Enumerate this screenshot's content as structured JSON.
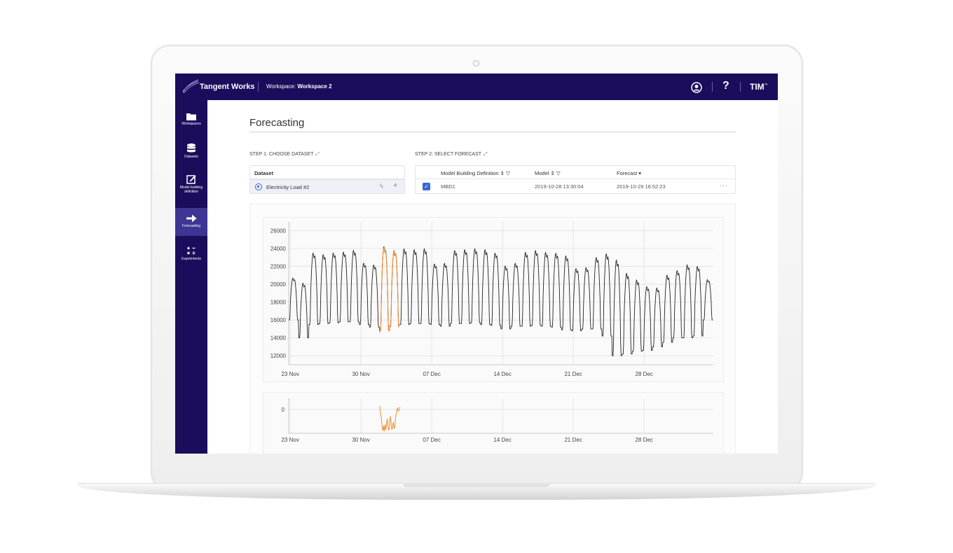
{
  "header": {
    "brand": "Tangent Works",
    "workspace_prefix": "Workspace:",
    "workspace_name": "Workspace 2",
    "help": "?",
    "product": "TIM",
    "product_mark": "™"
  },
  "sidebar": {
    "items": [
      {
        "label": "Workspaces",
        "icon": "folder-icon"
      },
      {
        "label": "Datasets",
        "icon": "database-icon"
      },
      {
        "label": "Model building definition",
        "icon": "edit-icon"
      },
      {
        "label": "Forecasting",
        "icon": "arrow-right-icon",
        "active": true
      },
      {
        "label": "Experiments",
        "icon": "calculator-icon"
      }
    ]
  },
  "page": {
    "title": "Forecasting"
  },
  "step1": {
    "label": "STEP 1: CHOOSE DATASET",
    "column": "Dataset",
    "dataset_name": "Electricity Load #2"
  },
  "step2": {
    "label": "STEP 2: SELECT FORECAST",
    "columns": {
      "mbd": "Model Building Definition ⇕",
      "model": "Model ⇕",
      "forecast": "Forecast ▾"
    },
    "row": {
      "mbd": "MBD1",
      "model": "2019-10-28 13:30:04",
      "forecast": "2019-10-29 16:52:23"
    }
  },
  "colors": {
    "accent": "#1b0d5c",
    "forecast": "#f28c28",
    "actual": "#222222"
  },
  "chart_data": [
    {
      "type": "line",
      "x_tick_labels": [
        "23 Nov",
        "30 Nov",
        "07 Dec",
        "14 Dec",
        "21 Dec",
        "28 Dec"
      ],
      "y_tick_labels": [
        "12000",
        "14000",
        "16000",
        "18000",
        "20000",
        "22000",
        "24000",
        "26000"
      ],
      "ylim": [
        11000,
        26500
      ],
      "grid": true,
      "series": [
        {
          "role": "actual",
          "color": "#222222",
          "daily_peaks": [
            21000,
            20500,
            24000,
            23800,
            24000,
            24100,
            24300,
            22800,
            22600,
            24800,
            24300,
            24500,
            24400,
            24500,
            22700,
            22800,
            24300,
            24400,
            24500,
            24400,
            24000,
            22500,
            22800,
            24100,
            24300,
            24100,
            24000,
            23700,
            22200,
            22300,
            23500,
            24000,
            23400,
            21800,
            21000,
            20200,
            20000,
            21500,
            22000,
            22700,
            22500,
            20800
          ],
          "daily_troughs": [
            16000,
            14000,
            15500,
            15600,
            15700,
            15800,
            15800,
            15500,
            15200,
            14800,
            15400,
            15500,
            15600,
            15600,
            15500,
            15300,
            15600,
            15600,
            15700,
            15500,
            15400,
            15000,
            15300,
            15300,
            15400,
            15300,
            15200,
            14900,
            14800,
            15000,
            15000,
            14200,
            12000,
            12200,
            12500,
            12600,
            13000,
            13500,
            14000,
            14000,
            14200,
            16000
          ]
        },
        {
          "role": "forecast",
          "color": "#f28c28",
          "start_day": 9,
          "end_day": 11
        }
      ]
    },
    {
      "type": "line",
      "x_tick_labels": [
        "23 Nov",
        "30 Nov",
        "07 Dec",
        "14 Dec",
        "21 Dec",
        "28 Dec"
      ],
      "y_tick_labels": [
        "0"
      ],
      "series": [
        {
          "role": "error",
          "color": "#f28c28",
          "start_day": 9,
          "end_day": 11
        }
      ]
    }
  ]
}
